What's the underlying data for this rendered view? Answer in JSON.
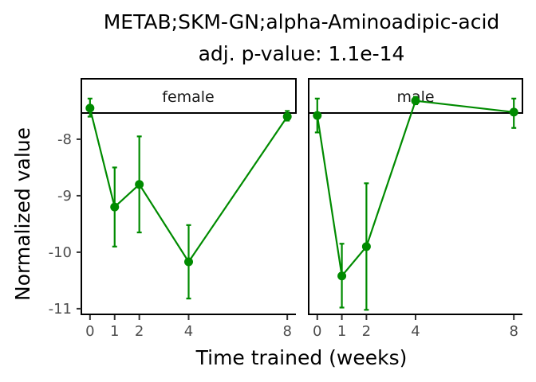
{
  "chart_data": {
    "type": "line",
    "title": "METAB;SKM-GN;alpha-Aminoadipic-acid",
    "subtitle": "adj. p-value: 1.1e-14",
    "xlabel": "Time trained (weeks)",
    "ylabel": "Normalized value",
    "x_ticks": [
      0,
      1,
      2,
      4,
      8
    ],
    "y_ticks": [
      -8,
      -9,
      -10,
      -11
    ],
    "xlim": [
      -0.35,
      8.35
    ],
    "ylim": [
      -11.1,
      -7.55
    ],
    "grid": false,
    "color": "#008B00",
    "panels": [
      {
        "strip": "female",
        "x": [
          0,
          1,
          2,
          4,
          8
        ],
        "y": [
          -7.45,
          -9.2,
          -8.8,
          -10.17,
          -7.6
        ],
        "err_low": [
          -7.6,
          -9.9,
          -9.65,
          -10.82,
          -7.67
        ],
        "err_high": [
          -7.28,
          -8.5,
          -7.95,
          -9.52,
          -7.5
        ]
      },
      {
        "strip": "male",
        "x": [
          0,
          1,
          2,
          4,
          8
        ],
        "y": [
          -7.58,
          -10.42,
          -9.9,
          -7.32,
          -7.52
        ],
        "err_low": [
          -7.88,
          -10.98,
          -11.02,
          -7.38,
          -7.8
        ],
        "err_high": [
          -7.28,
          -9.85,
          -8.78,
          -7.25,
          -7.28
        ]
      }
    ]
  }
}
